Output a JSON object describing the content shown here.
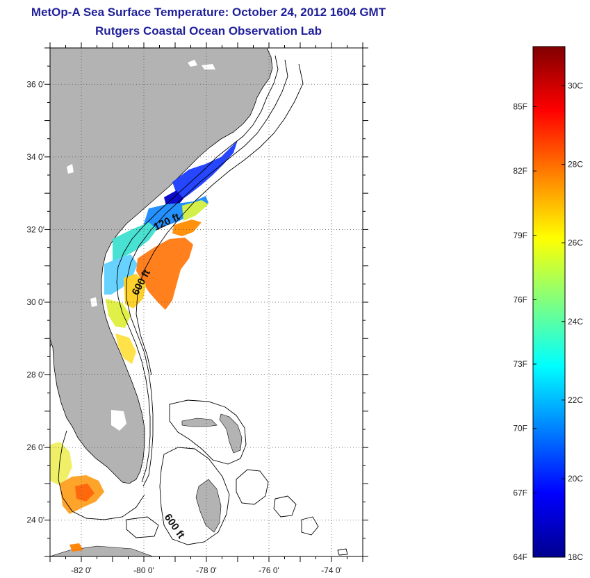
{
  "header": {
    "title": "MetOp-A Sea Surface Temperature:  October 24, 2012 1604 GMT",
    "subtitle": "Rutgers Coastal Ocean Observation Lab"
  },
  "map": {
    "lon_range": [
      -83,
      -73
    ],
    "lat_range": [
      23,
      37
    ],
    "lon_ticks": [
      {
        "value": -82,
        "label": "-82 0'"
      },
      {
        "value": -80,
        "label": "-80 0'"
      },
      {
        "value": -78,
        "label": "-78 0'"
      },
      {
        "value": -76,
        "label": "-76 0'"
      },
      {
        "value": -74,
        "label": "-74 0'"
      }
    ],
    "lat_ticks": [
      {
        "value": 36,
        "label": "36 0'"
      },
      {
        "value": 34,
        "label": "34 0'"
      },
      {
        "value": 32,
        "label": "32 0'"
      },
      {
        "value": 30,
        "label": "30 0'"
      },
      {
        "value": 28,
        "label": "28 0'"
      },
      {
        "value": 26,
        "label": "26 0'"
      },
      {
        "value": 24,
        "label": "24 0'"
      }
    ],
    "land_color": "#b3b3b3",
    "grid": "dotted",
    "annotations": {
      "contour_120": "120 ft",
      "contour_600_north": "600 ft",
      "contour_600_south": "600 ft"
    }
  },
  "colorbar": {
    "colors": [
      "#00008f",
      "#0000ff",
      "#0080ff",
      "#00ffff",
      "#80ff80",
      "#ffff00",
      "#ff8000",
      "#ff0000",
      "#800000"
    ],
    "fahrenheit": [
      {
        "value": 64,
        "label": "64F"
      },
      {
        "value": 67,
        "label": "67F"
      },
      {
        "value": 70,
        "label": "70F"
      },
      {
        "value": 73,
        "label": "73F"
      },
      {
        "value": 76,
        "label": "76F"
      },
      {
        "value": 79,
        "label": "79F"
      },
      {
        "value": 82,
        "label": "82F"
      },
      {
        "value": 85,
        "label": "85F"
      }
    ],
    "celsius": [
      {
        "value": 18,
        "label": "18C"
      },
      {
        "value": 20,
        "label": "20C"
      },
      {
        "value": 22,
        "label": "22C"
      },
      {
        "value": 24,
        "label": "24C"
      },
      {
        "value": 26,
        "label": "26C"
      },
      {
        "value": 28,
        "label": "28C"
      },
      {
        "value": 30,
        "label": "30C"
      }
    ]
  }
}
